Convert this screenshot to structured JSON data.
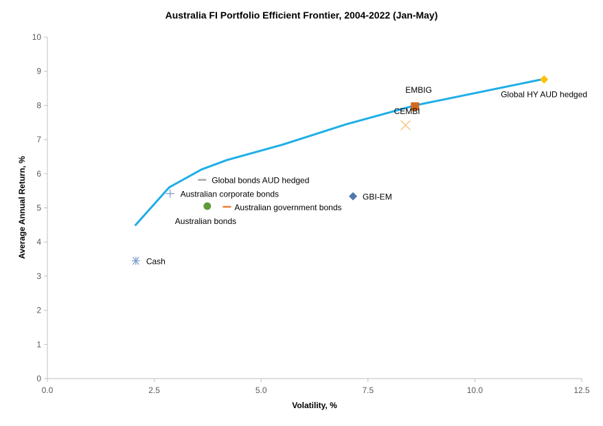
{
  "chart_data": {
    "type": "scatter",
    "title": "Australia FI Portfolio Efficient Frontier, 2004-2022 (Jan-May)",
    "xlabel": "Volatility, %",
    "ylabel": "Average Annual Return, %",
    "xlim": [
      0,
      12.5
    ],
    "ylim": [
      0,
      10
    ],
    "xticks": [
      "0.0",
      "2.5",
      "5.0",
      "7.5",
      "10.0",
      "12.5"
    ],
    "yticks": [
      "0",
      "1",
      "2",
      "3",
      "4",
      "5",
      "6",
      "7",
      "8",
      "9",
      "10"
    ],
    "grid": false,
    "frontier": {
      "color": "#1EAEE6",
      "x": [
        2.05,
        2.85,
        3.6,
        4.2,
        5.5,
        7.0,
        8.6,
        11.6
      ],
      "y": [
        4.48,
        5.6,
        6.12,
        6.4,
        6.85,
        7.45,
        8.0,
        8.77
      ]
    },
    "series": [
      {
        "name": "Cash",
        "x": 2.07,
        "y": 3.45,
        "marker": "asterisk",
        "color": "#7F9FD0"
      },
      {
        "name": "Australian corporate bonds",
        "x": 2.87,
        "y": 5.42,
        "marker": "plus",
        "color": "#7F9FD0"
      },
      {
        "name": "Global bonds AUD hedged",
        "x": 3.62,
        "y": 5.82,
        "marker": "dash",
        "color": "#A6A6A6"
      },
      {
        "name": "Australian bonds",
        "x": 3.74,
        "y": 5.05,
        "marker": "circle",
        "color": "#5E9A3A"
      },
      {
        "name": "Australian government bonds",
        "x": 4.2,
        "y": 5.03,
        "marker": "dash",
        "color": "#ED7D31"
      },
      {
        "name": "GBI-EM",
        "x": 7.15,
        "y": 5.34,
        "marker": "diamond",
        "color": "#4E78AE"
      },
      {
        "name": "CEMBI",
        "x": 8.38,
        "y": 7.42,
        "marker": "x",
        "color": "#F5C57E"
      },
      {
        "name": "EMBIG",
        "x": 8.6,
        "y": 7.97,
        "marker": "square",
        "color": "#D2691E"
      },
      {
        "name": "Global HY AUD hedged",
        "x": 11.62,
        "y": 8.76,
        "marker": "diamond",
        "color": "#FFC000"
      }
    ]
  }
}
